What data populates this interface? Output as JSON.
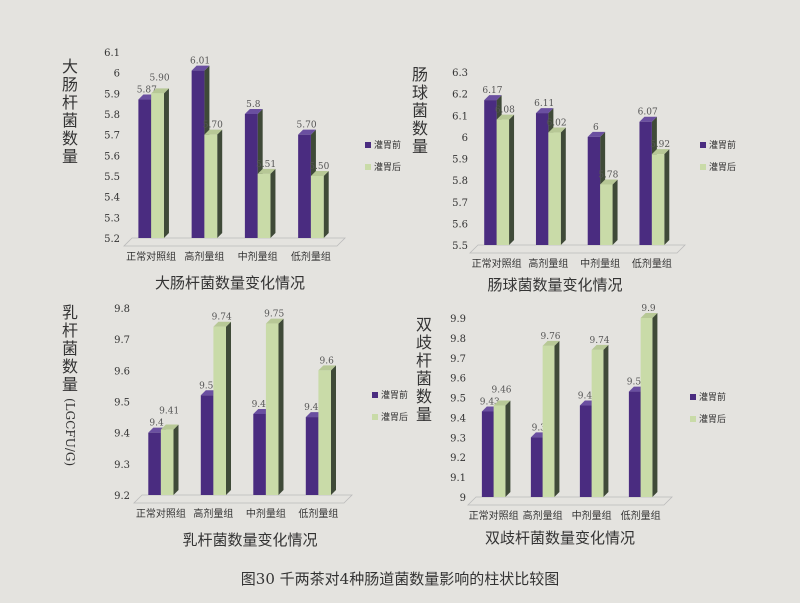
{
  "caption": "图30 千两茶对4种肠道菌数量影响的柱状比较图",
  "colors": {
    "before": "#4a2c80",
    "after": "#c9dba8",
    "side": "#3f4a38",
    "text": "#333333"
  },
  "chart_data": [
    {
      "type": "bar",
      "title": "大肠杆菌数量变化情况",
      "ylabel": "大肠杆菌数量",
      "categories": [
        "正常对照组",
        "高剂量组",
        "中剂量组",
        "低剂量组"
      ],
      "ylim": [
        5.2,
        6.1
      ],
      "yticks": [
        "5.2",
        "5.3",
        "5.4",
        "5.5",
        "5.6",
        "5.7",
        "5.8",
        "5.9",
        "6",
        "6.1"
      ],
      "legend_position": "right",
      "series": [
        {
          "name": "灌胃前",
          "values": [
            5.87,
            6.01,
            5.8,
            5.7
          ],
          "labels": [
            "5.87",
            "6.01",
            "5.8",
            "5.70"
          ]
        },
        {
          "name": "灌胃后",
          "values": [
            5.9,
            5.7,
            5.51,
            5.5
          ],
          "labels": [
            "5.90",
            "5.70",
            "5.51",
            "5.50"
          ]
        }
      ]
    },
    {
      "type": "bar",
      "title": "肠球菌数量变化情况",
      "ylabel": "肠球菌数量",
      "categories": [
        "正常对照组",
        "高剂量组",
        "中剂量组",
        "低剂量组"
      ],
      "ylim": [
        5.5,
        6.3
      ],
      "yticks": [
        "5.5",
        "5.6",
        "5.7",
        "5.8",
        "5.9",
        "6",
        "6.1",
        "6.2",
        "6.3"
      ],
      "legend_position": "right",
      "series": [
        {
          "name": "灌胃前",
          "values": [
            6.17,
            6.11,
            6.0,
            6.07
          ],
          "labels": [
            "6.17",
            "6.11",
            "6",
            "6.07"
          ]
        },
        {
          "name": "灌胃后",
          "values": [
            6.08,
            6.02,
            5.78,
            5.92
          ],
          "labels": [
            "6.08",
            "6.02",
            "5.78",
            "5.92"
          ]
        }
      ]
    },
    {
      "type": "bar",
      "title": "乳杆菌数量变化情况",
      "ylabel": "乳杆菌数量(LGCFU/G)",
      "categories": [
        "正常对照组",
        "高剂量组",
        "中剂量组",
        "低剂量组"
      ],
      "ylim": [
        9.2,
        9.8
      ],
      "yticks": [
        "9.2",
        "9.3",
        "9.4",
        "9.5",
        "9.6",
        "9.7",
        "9.8"
      ],
      "legend_position": "right",
      "series": [
        {
          "name": "灌胃前",
          "values": [
            9.4,
            9.52,
            9.46,
            9.45
          ],
          "labels": [
            "9.4",
            "9.52",
            "9.46",
            "9.45"
          ]
        },
        {
          "name": "灌胃后",
          "values": [
            9.41,
            9.74,
            9.75,
            9.6
          ],
          "labels": [
            "9.41",
            "9.74",
            "9.75",
            "9.6"
          ]
        }
      ]
    },
    {
      "type": "bar",
      "title": "双歧杆菌数量变化情况",
      "ylabel": "双歧杆菌数量",
      "categories": [
        "正常对照组",
        "高剂量组",
        "中剂量组",
        "低剂量组"
      ],
      "ylim": [
        9.0,
        9.9
      ],
      "yticks": [
        "9",
        "9.1",
        "9.2",
        "9.3",
        "9.4",
        "9.5",
        "9.6",
        "9.7",
        "9.8",
        "9.9"
      ],
      "legend_position": "right",
      "series": [
        {
          "name": "灌胃前",
          "values": [
            9.43,
            9.3,
            9.46,
            9.53
          ],
          "labels": [
            "9.43",
            "9.3",
            "9.46",
            "9.53"
          ]
        },
        {
          "name": "灌胃后",
          "values": [
            9.46,
            9.76,
            9.74,
            9.9
          ],
          "labels": [
            "9.46",
            "9.76",
            "9.74",
            "9.9"
          ]
        }
      ]
    }
  ]
}
